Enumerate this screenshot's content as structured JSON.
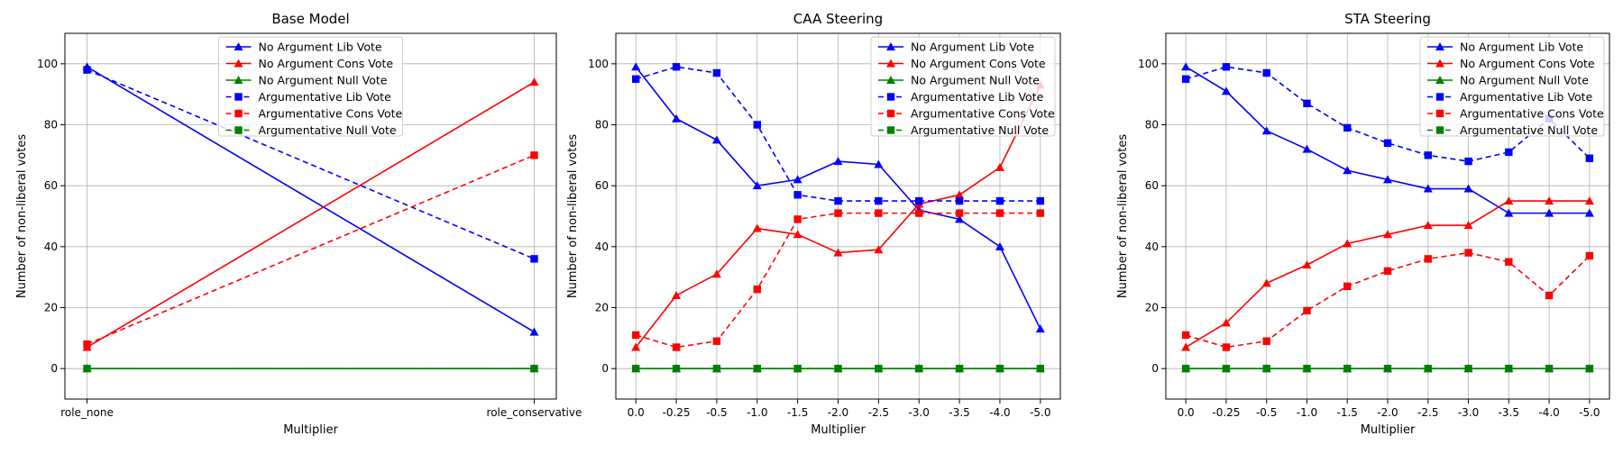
{
  "chart_data": [
    {
      "type": "line",
      "title": "Base Model",
      "xlabel": "Multiplier",
      "ylabel": "Number of non-liberal votes",
      "categories": [
        "role_none",
        "role_conservative"
      ],
      "ylim": [
        -10,
        110
      ],
      "yticks": [
        0,
        20,
        40,
        60,
        80,
        100
      ],
      "grid": true,
      "legend": "top-center",
      "series": [
        {
          "name": "No Argument Lib Vote",
          "color": "#0000ff",
          "marker": "triangle",
          "dash": false,
          "values": [
            99,
            12
          ]
        },
        {
          "name": "No Argument Cons Vote",
          "color": "#ff0000",
          "marker": "triangle",
          "dash": false,
          "values": [
            7,
            94
          ]
        },
        {
          "name": "No Argument Null Vote",
          "color": "#008000",
          "marker": "triangle",
          "dash": false,
          "values": [
            0,
            0
          ]
        },
        {
          "name": "Argumentative Lib Vote",
          "color": "#0000ff",
          "marker": "square",
          "dash": true,
          "values": [
            98,
            36
          ]
        },
        {
          "name": "Argumentative Cons Vote",
          "color": "#ff0000",
          "marker": "square",
          "dash": true,
          "values": [
            8,
            70
          ]
        },
        {
          "name": "Argumentative Null Vote",
          "color": "#008000",
          "marker": "square",
          "dash": true,
          "values": [
            0,
            0
          ]
        }
      ]
    },
    {
      "type": "line",
      "title": "CAA Steering",
      "xlabel": "Multiplier",
      "ylabel": "Number of non-liberal votes",
      "categories": [
        "0.0",
        "-0.25",
        "-0.5",
        "-1.0",
        "-1.5",
        "-2.0",
        "-2.5",
        "-3.0",
        "-3.5",
        "-4.0",
        "-5.0"
      ],
      "ylim": [
        -10,
        110
      ],
      "yticks": [
        0,
        20,
        40,
        60,
        80,
        100
      ],
      "grid": true,
      "legend": "top-right",
      "series": [
        {
          "name": "No Argument Lib Vote",
          "color": "#0000ff",
          "marker": "triangle",
          "dash": false,
          "values": [
            99,
            82,
            75,
            60,
            62,
            68,
            67,
            52,
            49,
            40,
            13
          ]
        },
        {
          "name": "No Argument Cons Vote",
          "color": "#ff0000",
          "marker": "triangle",
          "dash": false,
          "values": [
            7,
            24,
            31,
            46,
            44,
            38,
            39,
            54,
            57,
            66,
            93
          ]
        },
        {
          "name": "No Argument Null Vote",
          "color": "#008000",
          "marker": "triangle",
          "dash": false,
          "values": [
            0,
            0,
            0,
            0,
            0,
            0,
            0,
            0,
            0,
            0,
            0
          ]
        },
        {
          "name": "Argumentative Lib Vote",
          "color": "#0000ff",
          "marker": "square",
          "dash": true,
          "values": [
            95,
            99,
            97,
            80,
            57,
            55,
            55,
            55,
            55,
            55,
            55
          ]
        },
        {
          "name": "Argumentative Cons Vote",
          "color": "#ff0000",
          "marker": "square",
          "dash": true,
          "values": [
            11,
            7,
            9,
            26,
            49,
            51,
            51,
            51,
            51,
            51,
            51
          ]
        },
        {
          "name": "Argumentative Null Vote",
          "color": "#008000",
          "marker": "square",
          "dash": true,
          "values": [
            0,
            0,
            0,
            0,
            0,
            0,
            0,
            0,
            0,
            0,
            0
          ]
        }
      ]
    },
    {
      "type": "line",
      "title": "STA Steering",
      "xlabel": "Multiplier",
      "ylabel": "Number of non-liberal votes",
      "categories": [
        "0.0",
        "-0.25",
        "-0.5",
        "-1.0",
        "-1.5",
        "-2.0",
        "-2.5",
        "-3.0",
        "-3.5",
        "-4.0",
        "-5.0"
      ],
      "ylim": [
        -10,
        110
      ],
      "yticks": [
        0,
        20,
        40,
        60,
        80,
        100
      ],
      "grid": true,
      "legend": "top-right",
      "series": [
        {
          "name": "No Argument Lib Vote",
          "color": "#0000ff",
          "marker": "triangle",
          "dash": false,
          "values": [
            99,
            91,
            78,
            72,
            65,
            62,
            59,
            59,
            51,
            51,
            51
          ]
        },
        {
          "name": "No Argument Cons Vote",
          "color": "#ff0000",
          "marker": "triangle",
          "dash": false,
          "values": [
            7,
            15,
            28,
            34,
            41,
            44,
            47,
            47,
            55,
            55,
            55
          ]
        },
        {
          "name": "No Argument Null Vote",
          "color": "#008000",
          "marker": "triangle",
          "dash": false,
          "values": [
            0,
            0,
            0,
            0,
            0,
            0,
            0,
            0,
            0,
            0,
            0
          ]
        },
        {
          "name": "Argumentative Lib Vote",
          "color": "#0000ff",
          "marker": "square",
          "dash": true,
          "values": [
            95,
            99,
            97,
            87,
            79,
            74,
            70,
            68,
            71,
            82,
            69
          ]
        },
        {
          "name": "Argumentative Cons Vote",
          "color": "#ff0000",
          "marker": "square",
          "dash": true,
          "values": [
            11,
            7,
            9,
            19,
            27,
            32,
            36,
            38,
            35,
            24,
            37
          ]
        },
        {
          "name": "Argumentative Null Vote",
          "color": "#008000",
          "marker": "square",
          "dash": true,
          "values": [
            0,
            0,
            0,
            0,
            0,
            0,
            0,
            0,
            0,
            0,
            0
          ]
        }
      ]
    }
  ]
}
